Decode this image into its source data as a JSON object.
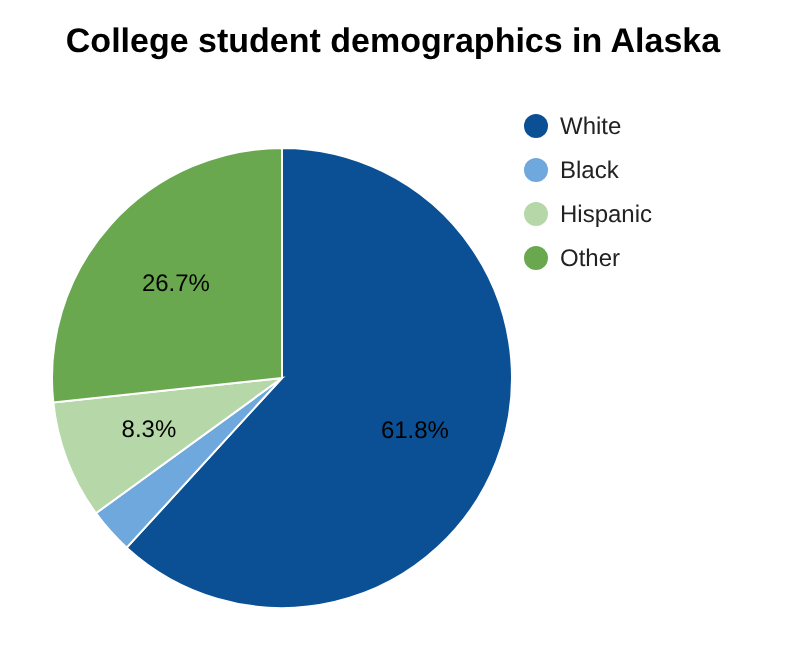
{
  "chart_data": {
    "type": "pie",
    "title": "College student demographics in Alaska",
    "categories": [
      "White",
      "Black",
      "Hispanic",
      "Other"
    ],
    "values": [
      61.8,
      3.2,
      8.3,
      26.7
    ],
    "value_labels": [
      "61.8%",
      null,
      "8.3%",
      "26.7%"
    ],
    "colors": [
      "#0b5094",
      "#6fa8dc",
      "#b6d7a8",
      "#6aa84f"
    ],
    "legend": "top right"
  }
}
